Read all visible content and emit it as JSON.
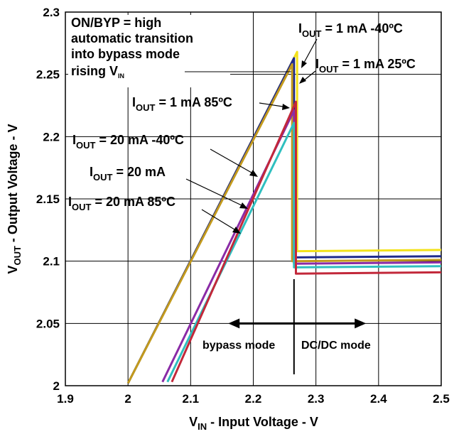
{
  "chart_data": {
    "type": "line",
    "title": "",
    "xlabel": {
      "main": "V",
      "sub": "IN",
      "rest": " - Input Voltage - V"
    },
    "ylabel": {
      "main": "V",
      "sub": "OUT",
      "rest": " - Output Voltage - V"
    },
    "xlim": [
      1.9,
      2.5
    ],
    "ylim": [
      2.0,
      2.3
    ],
    "xticks": [
      "1.9",
      "2",
      "2.1",
      "2.2",
      "2.3",
      "2.4",
      "2.5"
    ],
    "yticks": [
      "2",
      "2.05",
      "2.1",
      "2.15",
      "2.2",
      "2.25",
      "2.3"
    ],
    "grid": true,
    "legend": "none",
    "mode_divider_x": 2.265,
    "modes": {
      "left": "bypass mode",
      "right": "DC/DC mode"
    },
    "mode_arrow_range": [
      2.16,
      2.38
    ],
    "info_box": [
      "ON/BYP = high",
      "automatic transition",
      "into bypass mode"
    ],
    "info_box_last": {
      "main": "rising V",
      "sub": "IN"
    },
    "series": [
      {
        "label": {
          "main": "I",
          "sub": "OUT",
          "rest": " = 1 mA -40ºC"
        },
        "color": "#f3e21a",
        "x": [
          2.0,
          2.27,
          2.27,
          2.5
        ],
        "y": [
          2.002,
          2.268,
          2.108,
          2.109
        ]
      },
      {
        "label": {
          "main": "I",
          "sub": "OUT",
          "rest": " = 1 mA 25ºC"
        },
        "color": "#1e2a8c",
        "x": [
          2.0,
          2.265,
          2.265,
          2.5
        ],
        "y": [
          2.002,
          2.263,
          2.103,
          2.104
        ]
      },
      {
        "label": {
          "main": "I",
          "sub": "OUT",
          "rest": " = 1 mA 85ºC"
        },
        "color": "#c39a1d",
        "x": [
          2.0,
          2.262,
          2.262,
          2.5
        ],
        "y": [
          2.002,
          2.258,
          2.1,
          2.101
        ]
      },
      {
        "label": {
          "main": "I",
          "sub": "OUT",
          "rest": " = 20 mA -40ºC"
        },
        "color": "#8a2ba6",
        "x": [
          2.055,
          2.265,
          2.265,
          2.5
        ],
        "y": [
          2.003,
          2.221,
          2.098,
          2.099
        ]
      },
      {
        "label": {
          "main": "I",
          "sub": "OUT",
          "rest": " = 20 mA"
        },
        "color": "#2fbfbf",
        "x": [
          2.063,
          2.265,
          2.265,
          2.5
        ],
        "y": [
          2.003,
          2.211,
          2.095,
          2.096
        ]
      },
      {
        "label": {
          "main": "I",
          "sub": "OUT",
          "rest": " = 20 mA 85ºC"
        },
        "color": "#c2283a",
        "x": [
          2.07,
          2.268,
          2.268,
          2.5
        ],
        "y": [
          2.003,
          2.228,
          2.09,
          2.091
        ]
      }
    ]
  }
}
